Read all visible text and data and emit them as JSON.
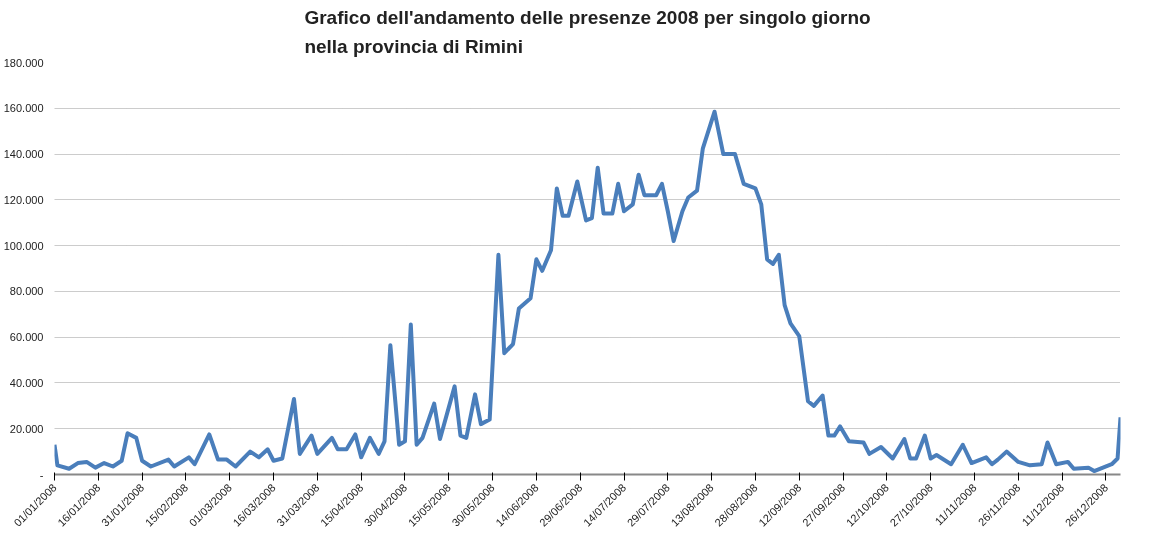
{
  "chart_data": {
    "type": "line",
    "title": "Grafico dell'andamento delle presenze 2008 per singolo giorno\nnella provincia di Rimini",
    "x": [
      "2008-01-01",
      "2008-01-02",
      "2008-01-06",
      "2008-01-09",
      "2008-01-12",
      "2008-01-15",
      "2008-01-18",
      "2008-01-21",
      "2008-01-24",
      "2008-01-26",
      "2008-01-29",
      "2008-01-31",
      "2008-02-03",
      "2008-02-09",
      "2008-02-11",
      "2008-02-16",
      "2008-02-18",
      "2008-02-23",
      "2008-02-26",
      "2008-02-29",
      "2008-03-03",
      "2008-03-08",
      "2008-03-11",
      "2008-03-14",
      "2008-03-16",
      "2008-03-19",
      "2008-03-23",
      "2008-03-25",
      "2008-03-29",
      "2008-03-31",
      "2008-04-05",
      "2008-04-07",
      "2008-04-10",
      "2008-04-13",
      "2008-04-15",
      "2008-04-18",
      "2008-04-21",
      "2008-04-23",
      "2008-04-25",
      "2008-04-28",
      "2008-04-30",
      "2008-05-02",
      "2008-05-04",
      "2008-05-06",
      "2008-05-10",
      "2008-05-12",
      "2008-05-17",
      "2008-05-19",
      "2008-05-21",
      "2008-05-24",
      "2008-05-26",
      "2008-05-29",
      "2008-06-01",
      "2008-06-03",
      "2008-06-06",
      "2008-06-08",
      "2008-06-12",
      "2008-06-14",
      "2008-06-16",
      "2008-06-19",
      "2008-06-21",
      "2008-06-23",
      "2008-06-25",
      "2008-06-28",
      "2008-07-01",
      "2008-07-03",
      "2008-07-05",
      "2008-07-07",
      "2008-07-10",
      "2008-07-12",
      "2008-07-14",
      "2008-07-17",
      "2008-07-19",
      "2008-07-21",
      "2008-07-25",
      "2008-07-27",
      "2008-07-29",
      "2008-07-31",
      "2008-08-03",
      "2008-08-05",
      "2008-08-08",
      "2008-08-10",
      "2008-08-14",
      "2008-08-17",
      "2008-08-21",
      "2008-08-24",
      "2008-08-28",
      "2008-08-30",
      "2008-09-01",
      "2008-09-03",
      "2008-09-05",
      "2008-09-07",
      "2008-09-09",
      "2008-09-12",
      "2008-09-15",
      "2008-09-17",
      "2008-09-20",
      "2008-09-22",
      "2008-09-24",
      "2008-09-26",
      "2008-09-29",
      "2008-10-04",
      "2008-10-06",
      "2008-10-10",
      "2008-10-14",
      "2008-10-18",
      "2008-10-20",
      "2008-10-22",
      "2008-10-25",
      "2008-10-27",
      "2008-10-29",
      "2008-11-03",
      "2008-11-07",
      "2008-11-10",
      "2008-11-15",
      "2008-11-17",
      "2008-11-19",
      "2008-11-22",
      "2008-11-26",
      "2008-11-30",
      "2008-12-04",
      "2008-12-06",
      "2008-12-09",
      "2008-12-13",
      "2008-12-15",
      "2008-12-20",
      "2008-12-22",
      "2008-12-28",
      "2008-12-30",
      "2008-12-31"
    ],
    "series": [
      {
        "color": "#4a7ebb",
        "values": [
          13000,
          4000,
          2500,
          5000,
          5500,
          3000,
          5000,
          3500,
          6000,
          18000,
          16000,
          6000,
          3500,
          6500,
          3500,
          7500,
          4500,
          17500,
          6500,
          6500,
          3500,
          10000,
          7500,
          11000,
          6000,
          7000,
          33000,
          9000,
          17000,
          9000,
          16000,
          11000,
          11000,
          17500,
          7500,
          16000,
          9000,
          14500,
          56500,
          13000,
          14500,
          65500,
          13000,
          16000,
          31000,
          15500,
          38500,
          17000,
          16000,
          35000,
          22000,
          24000,
          96000,
          53000,
          57000,
          72500,
          77000,
          94000,
          89000,
          98000,
          125000,
          113000,
          113000,
          128000,
          111000,
          112000,
          134000,
          114000,
          114000,
          127000,
          115000,
          118000,
          131000,
          122000,
          122000,
          127000,
          115000,
          102000,
          115000,
          121000,
          124000,
          142500,
          158500,
          140000,
          140000,
          127000,
          125000,
          118000,
          94000,
          92000,
          96000,
          74000,
          66000,
          60500,
          32000,
          30000,
          34500,
          17000,
          17000,
          21000,
          14500,
          14000,
          9000,
          12000,
          7000,
          15500,
          7000,
          7000,
          17000,
          7000,
          8500,
          4500,
          13000,
          5000,
          7500,
          4500,
          6500,
          10000,
          5500,
          4000,
          4500,
          14000,
          4500,
          5500,
          2500,
          3000,
          1500,
          4500,
          7000,
          25000
        ]
      }
    ],
    "xlim": [
      "2008-01-01",
      "2008-12-31"
    ],
    "xticks": [
      {
        "value": "2008-01-01",
        "label": "01/01/2008"
      },
      {
        "value": "2008-01-16",
        "label": "16/01/2008"
      },
      {
        "value": "2008-01-31",
        "label": "31/01/2008"
      },
      {
        "value": "2008-02-15",
        "label": "15/02/2008"
      },
      {
        "value": "2008-03-01",
        "label": "01/03/2008"
      },
      {
        "value": "2008-03-16",
        "label": "16/03/2008"
      },
      {
        "value": "2008-03-31",
        "label": "31/03/2008"
      },
      {
        "value": "2008-04-15",
        "label": "15/04/2008"
      },
      {
        "value": "2008-04-30",
        "label": "30/04/2008"
      },
      {
        "value": "2008-05-15",
        "label": "15/05/2008"
      },
      {
        "value": "2008-05-30",
        "label": "30/05/2008"
      },
      {
        "value": "2008-06-14",
        "label": "14/06/2008"
      },
      {
        "value": "2008-06-29",
        "label": "29/06/2008"
      },
      {
        "value": "2008-07-14",
        "label": "14/07/2008"
      },
      {
        "value": "2008-07-29",
        "label": "29/07/2008"
      },
      {
        "value": "2008-08-13",
        "label": "13/08/2008"
      },
      {
        "value": "2008-08-28",
        "label": "28/08/2008"
      },
      {
        "value": "2008-09-12",
        "label": "12/09/2008"
      },
      {
        "value": "2008-09-27",
        "label": "27/09/2008"
      },
      {
        "value": "2008-10-12",
        "label": "12/10/2008"
      },
      {
        "value": "2008-10-27",
        "label": "27/10/2008"
      },
      {
        "value": "2008-11-11",
        "label": "11/11/2008"
      },
      {
        "value": "2008-11-26",
        "label": "26/11/2008"
      },
      {
        "value": "2008-12-11",
        "label": "11/12/2008"
      },
      {
        "value": "2008-12-26",
        "label": "26/12/2008"
      }
    ],
    "ylim": [
      0,
      180000
    ],
    "yticks": [
      {
        "value": 0,
        "label": "-"
      },
      {
        "value": 20000,
        "label": "20.000"
      },
      {
        "value": 40000,
        "label": "40.000"
      },
      {
        "value": 60000,
        "label": "60.000"
      },
      {
        "value": 80000,
        "label": "80.000"
      },
      {
        "value": 100000,
        "label": "100.000"
      },
      {
        "value": 120000,
        "label": "120.000"
      },
      {
        "value": 140000,
        "label": "140.000"
      },
      {
        "value": 160000,
        "label": "160.000"
      },
      {
        "value": 180000,
        "label": "180.000"
      }
    ],
    "grid": "y",
    "line_style": "solid",
    "marker": "none"
  }
}
